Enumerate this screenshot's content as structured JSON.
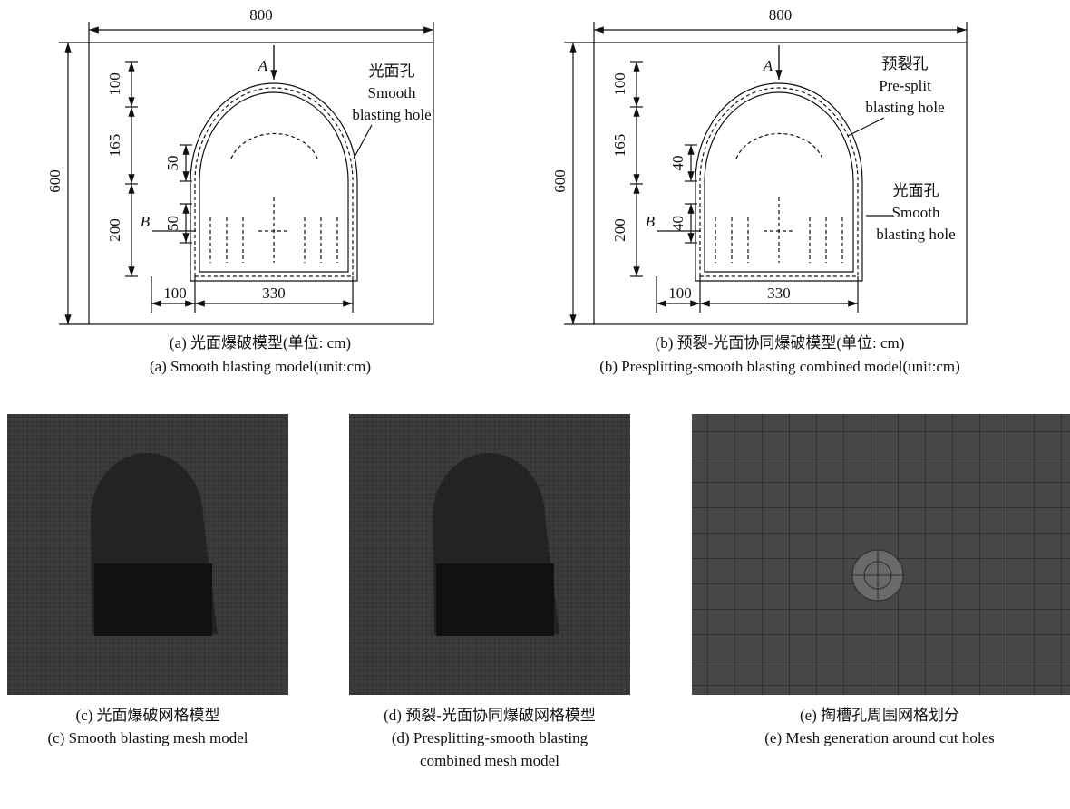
{
  "panel_a": {
    "width_dim": 800,
    "height_dim": 600,
    "vertical_dims": [
      100,
      165,
      200
    ],
    "hole_dims": [
      50,
      50
    ],
    "bottom_dims": [
      100,
      330
    ],
    "section_labels": [
      "A",
      "B"
    ],
    "hole_labels": [
      [
        "光面孔",
        "Smooth",
        "blasting hole"
      ]
    ],
    "caption": [
      "(a) 光面爆破模型(单位: cm)",
      "(a) Smooth blasting model(unit:cm)"
    ]
  },
  "panel_b": {
    "width_dim": 800,
    "height_dim": 600,
    "vertical_dims": [
      100,
      165,
      200
    ],
    "hole_dims": [
      40,
      40
    ],
    "bottom_dims": [
      100,
      330
    ],
    "section_labels": [
      "A",
      "B"
    ],
    "hole_labels": [
      [
        "预裂孔",
        "Pre-split",
        "blasting hole"
      ],
      [
        "光面孔",
        "Smooth",
        "blasting hole"
      ]
    ],
    "caption": [
      "(b) 预裂-光面协同爆破模型(单位: cm)",
      "(b) Presplitting-smooth blasting combined model(unit:cm)"
    ]
  },
  "panel_c": {
    "caption": [
      "(c) 光面爆破网格模型",
      "(c) Smooth blasting mesh model"
    ]
  },
  "panel_d": {
    "caption": [
      "(d) 预裂-光面协同爆破网格模型",
      "(d) Presplitting-smooth blasting",
      "combined mesh model"
    ]
  },
  "panel_e": {
    "caption": [
      "(e) 掏槽孔周围网格划分",
      "(e) Mesh generation around cut holes"
    ]
  }
}
